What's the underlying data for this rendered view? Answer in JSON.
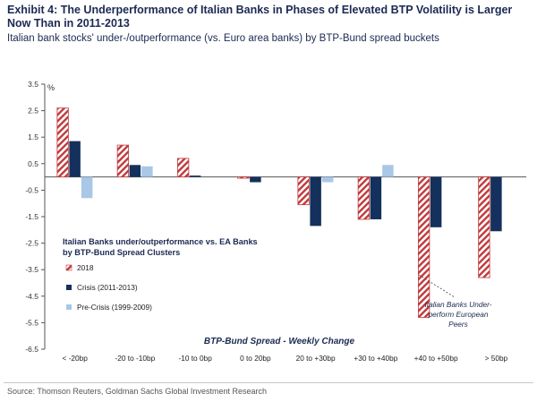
{
  "title": "Exhibit 4: The Underperformance of Italian Banks in Phases of Elevated BTP Volatility is Larger Now Than in 2011-2013",
  "subtitle": "Italian bank stocks' under-/outperformance (vs. Euro area banks) by BTP-Bund spread buckets",
  "source": "Source: Thomson Reuters, Goldman Sachs Global Investment Research",
  "colors": {
    "s2018_stripe": "#c0393b",
    "crisis": "#14305c",
    "precrisis": "#a9c7e6"
  },
  "chart_data": {
    "type": "bar",
    "xlabel": "BTP-Bund Spread - Weekly Change",
    "ylabel": "%",
    "ylim": [
      -6.5,
      3.5
    ],
    "yticks": [
      "3.5",
      "2.5",
      "1.5",
      "0.5",
      "-0.5",
      "-1.5",
      "-2.5",
      "-3.5",
      "-4.5",
      "-5.5",
      "-6.5"
    ],
    "ytick_values": [
      3.5,
      2.5,
      1.5,
      0.5,
      -0.5,
      -1.5,
      -2.5,
      -3.5,
      -4.5,
      -5.5,
      -6.5
    ],
    "categories": [
      "< -20bp",
      "-20 to -10bp",
      "-10 to 0bp",
      "0 to 20bp",
      "20 to +30bp",
      "+30 to +40bp",
      "+40 to +50bp",
      "> 50bp"
    ],
    "legend_title": "Italian Banks under/outperformance vs. EA Banks by BTP-Bund Spread Clusters",
    "series": [
      {
        "name": "2018",
        "values": [
          2.6,
          1.2,
          0.7,
          -0.05,
          -1.05,
          -1.6,
          -5.3,
          -3.8
        ]
      },
      {
        "name": "Crisis (2011-2013)",
        "values": [
          1.35,
          0.45,
          0.05,
          -0.2,
          -1.85,
          -1.6,
          -1.9,
          -2.05
        ]
      },
      {
        "name": "Pre-Crisis (1999-2009)",
        "values": [
          -0.8,
          0.4,
          0.0,
          0.0,
          -0.2,
          0.45,
          0.0,
          0.0
        ]
      }
    ],
    "annotation": "Italian Banks Under-perform European Peers",
    "grid": false,
    "legend_position": "middle-left"
  }
}
